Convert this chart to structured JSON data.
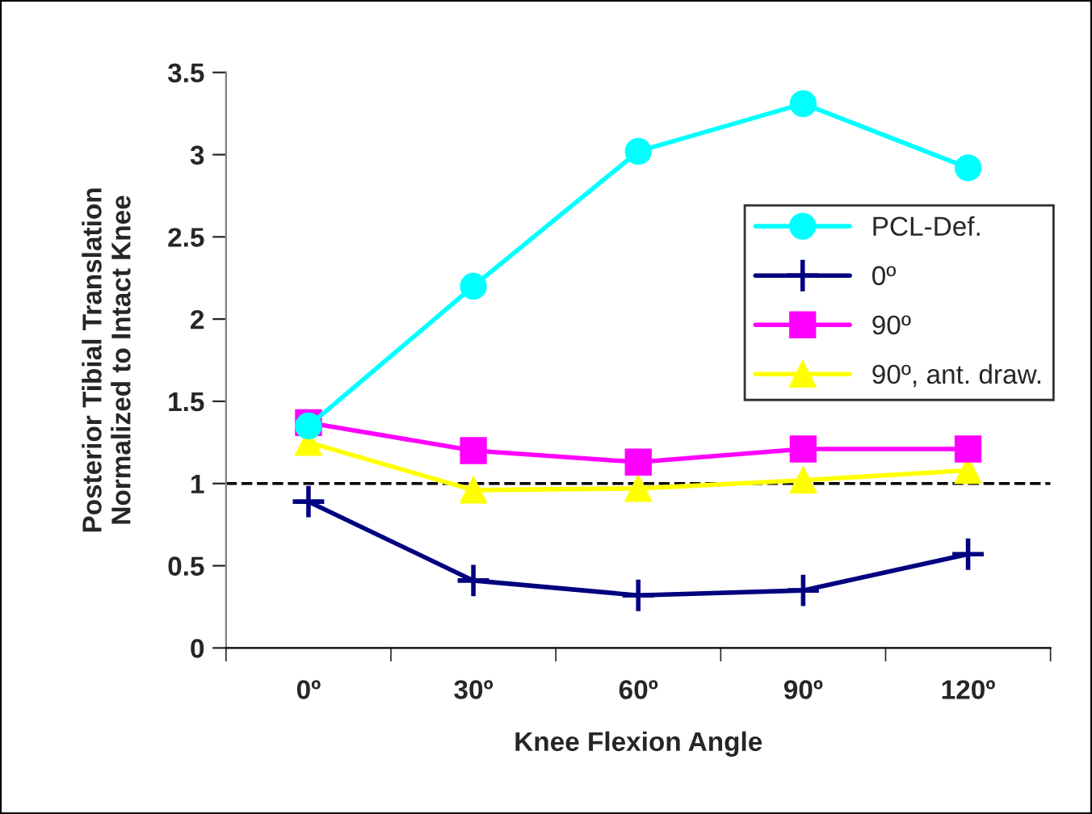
{
  "chart_data": {
    "type": "line",
    "xlabel": "Knee Flexion Angle",
    "ylabel": "Posterior Tibial Translation\nNormalized to Intact Knee",
    "categories": [
      "0º",
      "30º",
      "60º",
      "90º",
      "120º"
    ],
    "series": [
      {
        "name": "PCL-Def.",
        "color": "#00ffff",
        "marker": "circle",
        "values": [
          1.35,
          2.2,
          3.02,
          3.31,
          2.92
        ]
      },
      {
        "name": "0º",
        "color": "#000080",
        "marker": "cross",
        "values": [
          0.89,
          0.41,
          0.32,
          0.35,
          0.57
        ]
      },
      {
        "name": "90º",
        "color": "#ff00ff",
        "marker": "square",
        "values": [
          1.37,
          1.2,
          1.13,
          1.21,
          1.21
        ]
      },
      {
        "name": "90º, ant. draw.",
        "color": "#ffff00",
        "marker": "triangle",
        "values": [
          1.25,
          0.96,
          0.97,
          1.02,
          1.08
        ]
      }
    ],
    "ylim": [
      0,
      3.5
    ],
    "yticks": [
      0,
      0.5,
      1,
      1.5,
      2,
      2.5,
      3,
      3.5
    ],
    "ref_lines": [
      {
        "axis": "y",
        "value": 1,
        "color": "#000000",
        "line_style": "dashed"
      }
    ],
    "grid": false,
    "legend": "right"
  }
}
